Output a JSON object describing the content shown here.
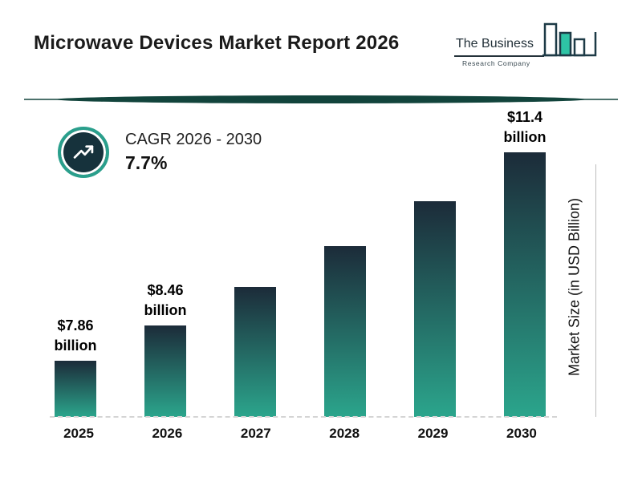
{
  "header": {
    "title": "Microwave Devices Market Report 2026",
    "logo": {
      "line1": "The Business",
      "line2": "Research Company"
    }
  },
  "cagr": {
    "label": "CAGR 2026 - 2030",
    "value": "7.7%"
  },
  "chart_data": {
    "type": "bar",
    "title": "Microwave Devices Market Report 2026",
    "categories": [
      "2025",
      "2026",
      "2027",
      "2028",
      "2029",
      "2030"
    ],
    "values": [
      7.86,
      8.46,
      9.11,
      9.81,
      10.57,
      11.4
    ],
    "annotations": [
      "$7.86 billion",
      "$8.46 billion",
      "",
      "",
      "",
      "$11.4 billion"
    ],
    "xlabel": "",
    "ylabel": "Market Size (in USD Billion)",
    "ylim": [
      6.9,
      11.4
    ],
    "grid": false,
    "legend": "none",
    "bar_gradient": [
      "#1c2b39",
      "#2ba58c"
    ],
    "baseline_style": "dashed",
    "cagr_label": "CAGR 2026 - 2030",
    "cagr_value": "7.7%"
  },
  "colors": {
    "accent_teal": "#2a9f8c",
    "dark_navy": "#16323c",
    "divider": "#12443c",
    "logo_teal": "#2ec4a5",
    "logo_outline": "#1d3a46"
  }
}
